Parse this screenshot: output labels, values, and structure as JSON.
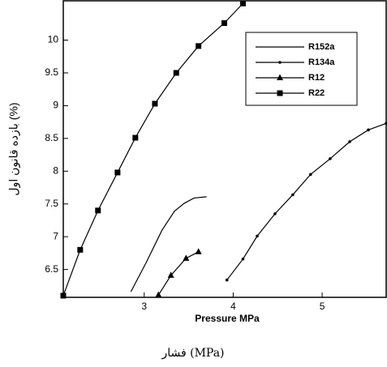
{
  "chart_data": {
    "type": "line",
    "x_label": "Pressure MPa",
    "y_label": "بازده قانون اول (%)",
    "caption": "فشار (MPa)",
    "xlim": [
      2.09,
      5.72
    ],
    "ylim": [
      6.075,
      10.6
    ],
    "xticks": [
      3,
      4,
      5
    ],
    "yticks": [
      6.5,
      7,
      7.5,
      8,
      8.5,
      9,
      9.5,
      10
    ],
    "legend": "upper right",
    "series": [
      {
        "name": "R152a",
        "color": "#000000",
        "marker": "none",
        "x": [
          2.85,
          3.02,
          3.2,
          3.34,
          3.45,
          3.56,
          3.7
        ],
        "values": [
          6.16,
          6.6,
          7.1,
          7.39,
          7.51,
          7.59,
          7.61
        ]
      },
      {
        "name": "R134a",
        "color": "#000000",
        "marker": "dot",
        "x": [
          3.93,
          4.11,
          4.27,
          4.47,
          4.67,
          4.87,
          5.09,
          5.31,
          5.52,
          5.72
        ],
        "values": [
          6.34,
          6.66,
          7.01,
          7.35,
          7.64,
          7.95,
          8.19,
          8.45,
          8.63,
          8.73
        ]
      },
      {
        "name": "R12",
        "color": "#000000",
        "marker": "triangle",
        "x": [
          3.16,
          3.3,
          3.47,
          3.61
        ],
        "values": [
          6.11,
          6.41,
          6.67,
          6.77
        ]
      },
      {
        "name": "R22",
        "color": "#000000",
        "marker": "square",
        "x": [
          2.09,
          2.28,
          2.48,
          2.7,
          2.9,
          3.12,
          3.36,
          3.61,
          3.9,
          4.11
        ],
        "values": [
          6.1,
          6.8,
          7.4,
          7.98,
          8.51,
          9.03,
          9.5,
          9.91,
          10.26,
          10.56
        ]
      }
    ]
  }
}
